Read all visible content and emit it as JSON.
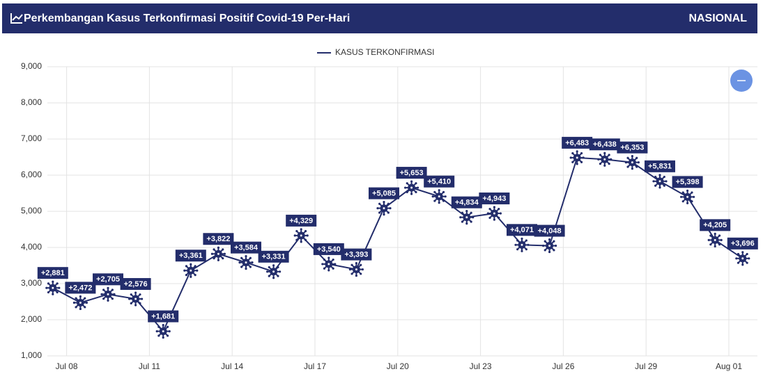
{
  "header": {
    "title": "Perkembangan Kasus Terkonfirmasi Positif Covid-19 Per-Hari",
    "region": "NASIONAL"
  },
  "chart_data": {
    "type": "line",
    "categories": [
      null,
      "Jul 08",
      null,
      null,
      "Jul 11",
      null,
      null,
      "Jul 14",
      null,
      null,
      "Jul 17",
      null,
      null,
      "Jul 20",
      null,
      null,
      "Jul 23",
      null,
      null,
      "Jul 26",
      null,
      null,
      "Jul 29",
      null,
      null,
      "Aug 01"
    ],
    "series": [
      {
        "name": "KASUS TERKONFIRMASI",
        "color": "#232d6b",
        "values": [
          2881,
          2472,
          2705,
          2576,
          1681,
          3361,
          3822,
          3584,
          3331,
          4329,
          3540,
          3393,
          5085,
          5653,
          5410,
          4834,
          4943,
          4071,
          4048,
          6483,
          6438,
          6353,
          5831,
          5398,
          4205,
          3696
        ],
        "value_labels": [
          "+2,881",
          "+2,472",
          "+2,705",
          "+2,576",
          "+1,681",
          "+3,361",
          "+3,822",
          "+3,584",
          "+3,331",
          "+4,329",
          "+3,540",
          "+3,393",
          "+5,085",
          "+5,653",
          "+5,410",
          "+4,834",
          "+4,943",
          "+4,071",
          "+4,048",
          "+6,483",
          "+6,438",
          "+6,353",
          "+5,831",
          "+5,398",
          "+4,205",
          "+3,696"
        ]
      }
    ],
    "ylim": [
      1000,
      9000
    ],
    "yticks": [
      {
        "value": 1000,
        "label": "1,000"
      },
      {
        "value": 2000,
        "label": "2,000"
      },
      {
        "value": 3000,
        "label": "3,000"
      },
      {
        "value": 4000,
        "label": "4,000"
      },
      {
        "value": 5000,
        "label": "5,000"
      },
      {
        "value": 6000,
        "label": "6,000"
      },
      {
        "value": 7000,
        "label": "7,000"
      },
      {
        "value": 8000,
        "label": "8,000"
      },
      {
        "value": 9000,
        "label": "9,000"
      }
    ],
    "grid": true
  }
}
